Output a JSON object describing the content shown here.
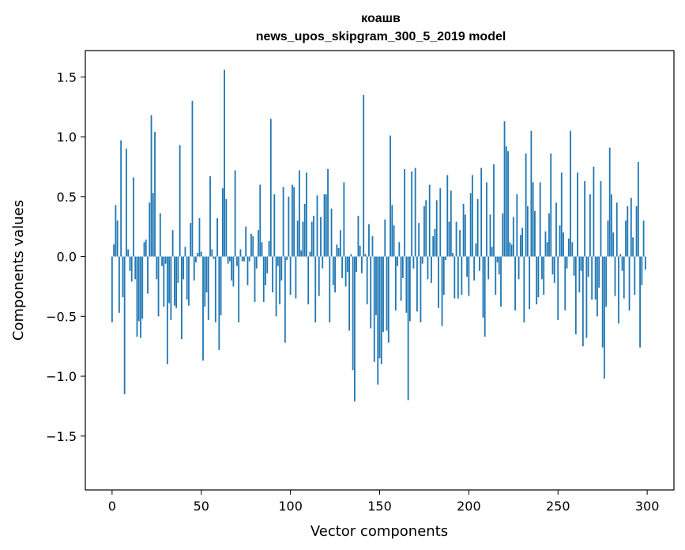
{
  "chart_data": {
    "type": "bar",
    "title_line1": "коашв",
    "title_line2": "news_upos_skipgram_300_5_2019 model",
    "xlabel": "Vector components",
    "ylabel": "Components values",
    "xlim": [
      -15,
      315
    ],
    "ylim": [
      -1.95,
      1.72
    ],
    "x_ticks": [
      0,
      50,
      100,
      150,
      200,
      250,
      300
    ],
    "x_tick_labels": [
      "0",
      "50",
      "100",
      "150",
      "200",
      "250",
      "300"
    ],
    "y_ticks": [
      -1.5,
      -1.0,
      -0.5,
      0.0,
      0.5,
      1.0,
      1.5
    ],
    "y_tick_labels": [
      "−1.5",
      "−1.0",
      "−0.5",
      "0.0",
      "0.5",
      "1.0",
      "1.5"
    ],
    "bar_color": "#1f77b4",
    "bar_width": 0.8,
    "values": [
      -0.55,
      0.1,
      0.43,
      0.3,
      -0.47,
      0.97,
      -0.34,
      -1.15,
      0.9,
      0.06,
      -0.12,
      -0.21,
      0.66,
      -0.19,
      -0.67,
      -0.54,
      -0.68,
      -0.52,
      0.12,
      0.14,
      -0.31,
      0.45,
      1.18,
      0.53,
      1.04,
      -0.19,
      -0.5,
      0.36,
      -0.08,
      -0.42,
      -0.06,
      -0.9,
      -0.39,
      -0.53,
      0.22,
      -0.41,
      -0.43,
      -0.22,
      0.93,
      -0.69,
      -0.19,
      0.08,
      -0.36,
      -0.41,
      0.28,
      1.3,
      -0.2,
      -0.05,
      0.03,
      0.32,
      0.04,
      -0.87,
      -0.42,
      -0.3,
      -0.53,
      0.67,
      0.06,
      -0.02,
      -0.55,
      0.32,
      -0.78,
      -0.49,
      0.57,
      1.56,
      0.48,
      -0.06,
      -0.04,
      -0.2,
      -0.25,
      0.72,
      -0.08,
      -0.55,
      0.06,
      -0.04,
      -0.04,
      0.25,
      -0.24,
      -0.04,
      0.19,
      0.17,
      -0.38,
      -0.1,
      0.22,
      0.6,
      0.12,
      -0.38,
      -0.24,
      -0.14,
      0.13,
      1.15,
      -0.3,
      0.52,
      -0.5,
      -0.08,
      -0.4,
      -0.2,
      0.58,
      -0.72,
      -0.03,
      0.5,
      -0.32,
      0.6,
      0.58,
      -0.35,
      0.3,
      0.72,
      0.05,
      0.29,
      0.44,
      0.7,
      -0.4,
      0.04,
      0.29,
      0.34,
      -0.55,
      0.51,
      -0.33,
      0.33,
      -0.1,
      0.52,
      0.52,
      0.73,
      -0.55,
      0.4,
      -0.24,
      -0.3,
      0.1,
      0.07,
      0.22,
      -0.18,
      0.62,
      -0.25,
      -0.13,
      -0.62,
      0.02,
      -0.95,
      -1.21,
      -0.13,
      0.34,
      0.09,
      -0.14,
      1.35,
      0.02,
      -0.4,
      0.27,
      -0.6,
      0.17,
      -0.88,
      -0.49,
      -1.07,
      -0.85,
      -0.9,
      -0.63,
      0.31,
      -0.62,
      -0.72,
      1.01,
      0.43,
      0.26,
      -0.45,
      -0.08,
      0.12,
      -0.37,
      -0.18,
      0.73,
      -0.47,
      -1.2,
      -0.54,
      0.71,
      -0.1,
      0.74,
      -0.46,
      0.28,
      -0.55,
      -0.06,
      0.42,
      0.47,
      -0.19,
      0.6,
      -0.22,
      0.17,
      0.23,
      0.47,
      -0.43,
      0.57,
      -0.58,
      -0.32,
      -0.03,
      0.68,
      0.29,
      0.55,
      0.03,
      -0.35,
      0.29,
      -0.35,
      0.22,
      -0.32,
      0.44,
      0.35,
      -0.17,
      -0.33,
      0.53,
      0.68,
      -0.2,
      0.11,
      0.48,
      -0.12,
      0.74,
      -0.51,
      -0.67,
      0.62,
      -0.19,
      0.35,
      0.08,
      0.77,
      -0.32,
      -0.05,
      -0.15,
      -0.42,
      0.36,
      1.13,
      0.92,
      0.88,
      0.12,
      0.1,
      0.33,
      -0.45,
      0.52,
      -0.19,
      0.18,
      0.24,
      -0.55,
      0.86,
      0.42,
      -0.44,
      1.05,
      0.62,
      0.38,
      -0.4,
      -0.34,
      0.62,
      -0.19,
      -0.32,
      0.21,
      0.12,
      0.36,
      0.86,
      -0.15,
      -0.22,
      0.45,
      -0.53,
      0.26,
      0.7,
      0.2,
      -0.45,
      -0.1,
      0.15,
      1.05,
      0.12,
      -0.16,
      -0.65,
      0.7,
      -0.3,
      -0.12,
      -0.75,
      0.63,
      -0.68,
      -0.17,
      0.52,
      -0.36,
      0.75,
      -0.36,
      -0.5,
      -0.26,
      0.63,
      -0.76,
      -1.02,
      -0.42,
      0.3,
      0.91,
      0.52,
      0.2,
      -0.33,
      0.45,
      -0.56,
      0.02,
      -0.12,
      -0.35,
      0.3,
      0.42,
      -0.45,
      0.49,
      0.16,
      -0.32,
      0.42,
      0.79,
      -0.76,
      -0.24,
      0.3,
      -0.11
    ]
  }
}
